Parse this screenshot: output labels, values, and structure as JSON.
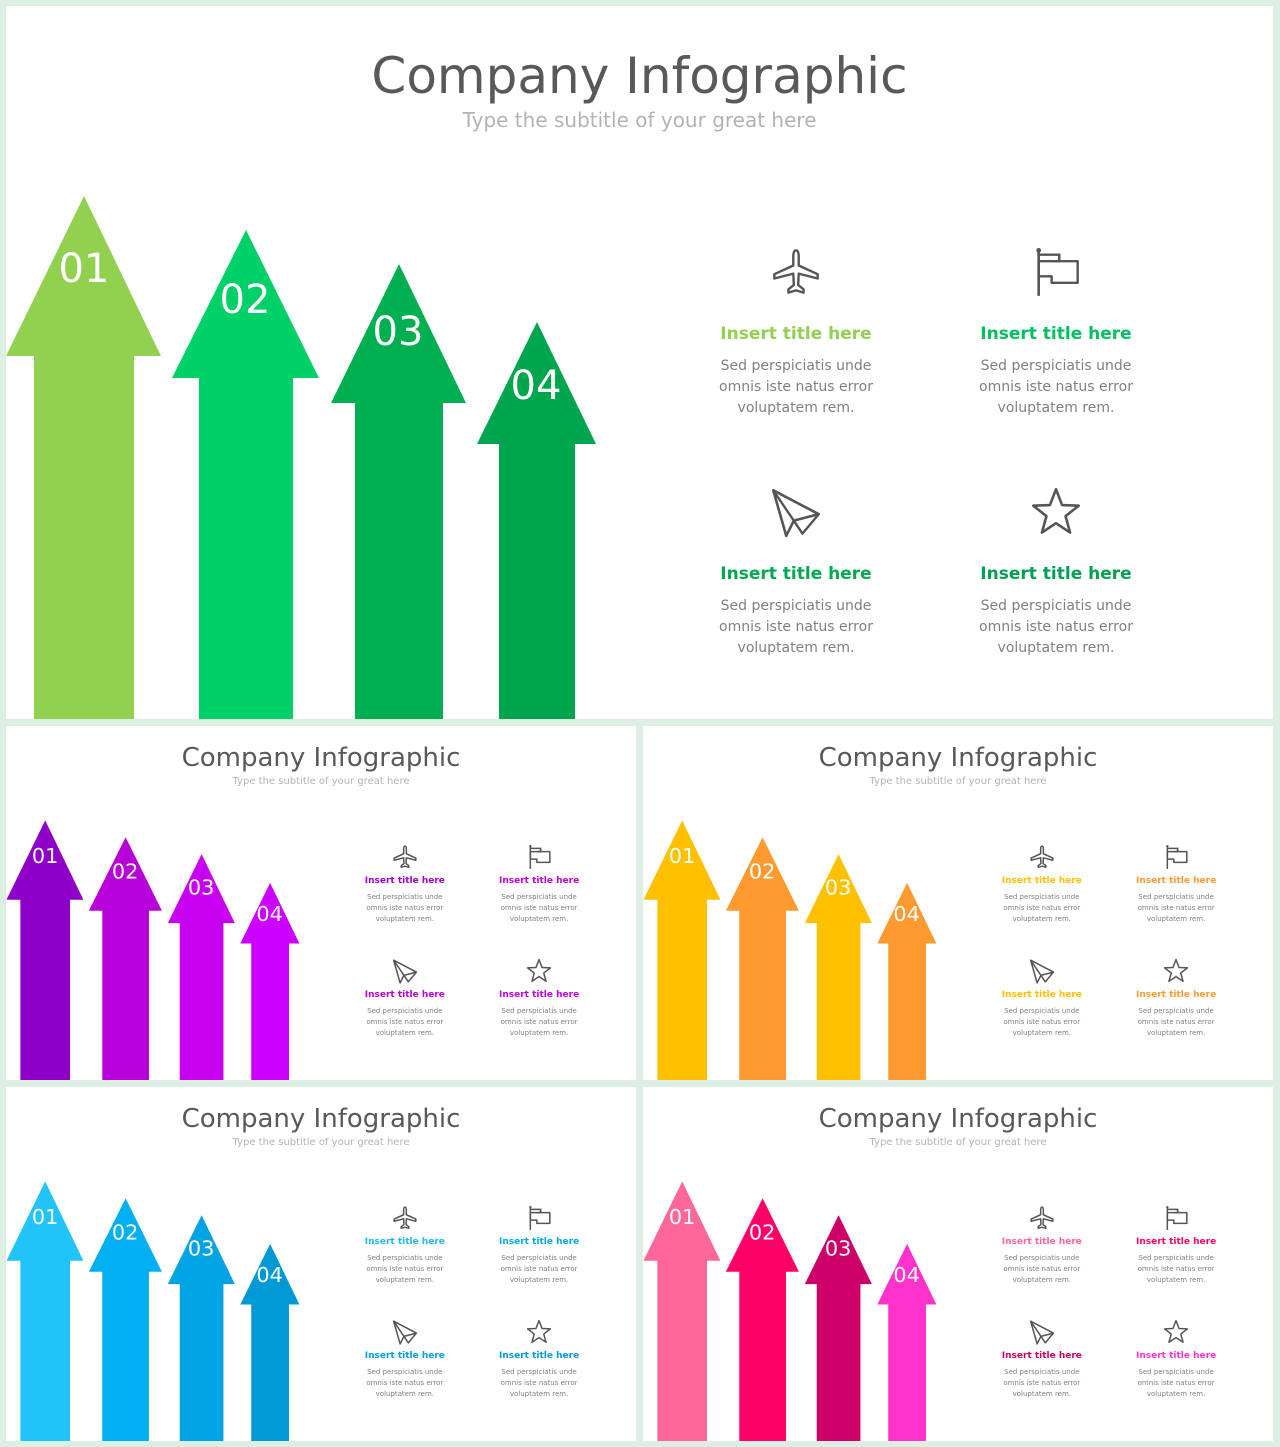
{
  "slides": [
    {
      "title": "Company Infographic",
      "subtitle": "Type the subtitle of your great here",
      "arrow_colors": [
        "#92d050",
        "#00d068",
        "#00b050",
        "#00a64d"
      ],
      "title_colors": [
        "#92d050",
        "#00c060",
        "#00a850",
        "#00a050"
      ],
      "arrows": [
        "01",
        "02",
        "03",
        "04"
      ],
      "items": [
        {
          "icon": "airplane-icon",
          "title": "Insert title here",
          "desc": "Sed perspiciatis unde omnis iste natus error  voluptatem rem."
        },
        {
          "icon": "flag-icon",
          "title": "Insert title here",
          "desc": "Sed perspiciatis unde omnis iste natus error  voluptatem rem."
        },
        {
          "icon": "paper-plane-icon",
          "title": "Insert title here",
          "desc": "Sed perspiciatis unde omnis iste natus error  voluptatem rem."
        },
        {
          "icon": "star-icon",
          "title": "Insert title here",
          "desc": "Sed perspiciatis unde omnis iste natus error  voluptatem rem."
        }
      ]
    },
    {
      "title": "Company Infographic",
      "subtitle": "Type the subtitle of your great here",
      "arrow_colors": [
        "#8e00c8",
        "#b800d8",
        "#c800f0",
        "#cc00ff"
      ],
      "title_colors": [
        "#9e00d0",
        "#b800d8",
        "#b800d8",
        "#c000e8"
      ],
      "arrows": [
        "01",
        "02",
        "03",
        "04"
      ],
      "items": [
        {
          "icon": "airplane-icon",
          "title": "Insert title here",
          "desc": "Sed perspiciatis unde omnis iste natus error  voluptatem rem."
        },
        {
          "icon": "flag-icon",
          "title": "Insert title here",
          "desc": "Sed perspiciatis unde omnis iste natus error  voluptatem rem."
        },
        {
          "icon": "paper-plane-icon",
          "title": "Insert title here",
          "desc": "Sed perspiciatis unde omnis iste natus error  voluptatem rem."
        },
        {
          "icon": "star-icon",
          "title": "Insert title here",
          "desc": "Sed perspiciatis unde omnis iste natus error  voluptatem rem."
        }
      ]
    },
    {
      "title": "Company Infographic",
      "subtitle": "Type the subtitle of your great here",
      "arrow_colors": [
        "#ffc000",
        "#ff9a30",
        "#ffc000",
        "#ff9a30"
      ],
      "title_colors": [
        "#ffc000",
        "#ff9a30",
        "#ffc000",
        "#ff9a30"
      ],
      "arrows": [
        "01",
        "02",
        "03",
        "04"
      ],
      "items": [
        {
          "icon": "airplane-icon",
          "title": "Insert title here",
          "desc": "Sed perspiciatis unde omnis iste natus error  voluptatem rem."
        },
        {
          "icon": "flag-icon",
          "title": "Insert title here",
          "desc": "Sed perspiciatis unde omnis iste natus error  voluptatem rem."
        },
        {
          "icon": "paper-plane-icon",
          "title": "Insert title here",
          "desc": "Sed perspiciatis unde omnis iste natus error  voluptatem rem."
        },
        {
          "icon": "star-icon",
          "title": "Insert title here",
          "desc": "Sed perspiciatis unde omnis iste natus error  voluptatem rem."
        }
      ]
    },
    {
      "title": "Company Infographic",
      "subtitle": "Type the subtitle of your great here",
      "arrow_colors": [
        "#20c4f8",
        "#00b0f0",
        "#00a4e4",
        "#0099d6"
      ],
      "title_colors": [
        "#20b8f0",
        "#00a8e8",
        "#00a0e0",
        "#0099d6"
      ],
      "arrows": [
        "01",
        "02",
        "03",
        "04"
      ],
      "items": [
        {
          "icon": "airplane-icon",
          "title": "Insert title here",
          "desc": "Sed perspiciatis unde omnis iste natus error  voluptatem rem."
        },
        {
          "icon": "flag-icon",
          "title": "Insert title here",
          "desc": "Sed perspiciatis unde omnis iste natus error  voluptatem rem."
        },
        {
          "icon": "paper-plane-icon",
          "title": "Insert title here",
          "desc": "Sed perspiciatis unde omnis iste natus error  voluptatem rem."
        },
        {
          "icon": "star-icon",
          "title": "Insert title here",
          "desc": "Sed perspiciatis unde omnis iste natus error  voluptatem rem."
        }
      ]
    },
    {
      "title": "Company Infographic",
      "subtitle": "Type the subtitle of your great here",
      "arrow_colors": [
        "#ff6699",
        "#ff0066",
        "#cc0066",
        "#ff33cc"
      ],
      "title_colors": [
        "#ff6699",
        "#ff0066",
        "#cc0066",
        "#ff33cc"
      ],
      "arrows": [
        "01",
        "02",
        "03",
        "04"
      ],
      "items": [
        {
          "icon": "airplane-icon",
          "title": "Insert title here",
          "desc": "Sed perspiciatis unde omnis iste natus error  voluptatem rem."
        },
        {
          "icon": "flag-icon",
          "title": "Insert title here",
          "desc": "Sed perspiciatis unde omnis iste natus error  voluptatem rem."
        },
        {
          "icon": "paper-plane-icon",
          "title": "Insert title here",
          "desc": "Sed perspiciatis unde omnis iste natus error  voluptatem rem."
        },
        {
          "icon": "star-icon",
          "title": "Insert title here",
          "desc": "Sed perspiciatis unde omnis iste natus error  voluptatem rem."
        }
      ]
    }
  ]
}
